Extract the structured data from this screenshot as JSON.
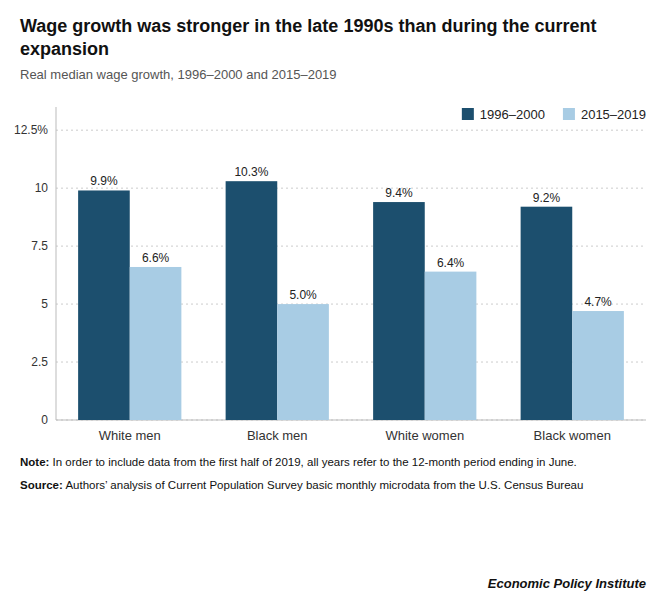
{
  "chart_data": {
    "type": "bar",
    "title": "Wage growth was stronger in the late 1990s than during the current expansion",
    "subtitle": "Real median wage growth, 1996–2000 and 2015–2019",
    "categories": [
      "White men",
      "Black men",
      "White women",
      "Black women"
    ],
    "series": [
      {
        "name": "1996–2000",
        "color": "#1c4f6e",
        "values": [
          9.9,
          10.3,
          9.4,
          9.2
        ],
        "value_labels": [
          "9.9%",
          "10.3%",
          "9.4%",
          "9.2%"
        ]
      },
      {
        "name": "2015–2019",
        "color": "#a8cce4",
        "values": [
          6.6,
          5.0,
          6.4,
          4.7
        ],
        "value_labels": [
          "6.6%",
          "5.0%",
          "6.4%",
          "4.7%"
        ]
      }
    ],
    "ylim": [
      0,
      13.5
    ],
    "yticks": [
      0,
      2.5,
      5,
      7.5,
      10,
      {
        "value": 12.5,
        "label": "12.5%"
      }
    ],
    "grid": true,
    "legend": "upper right",
    "data_labels": true,
    "annotations": [
      "Note: In order to include data from the first half of 2019, all years refer to the 12-month period ending in June.",
      "Source: Authors’ analysis of Current Population Survey basic monthly microdata from the U.S. Census Bureau",
      "Economic Policy Institute"
    ]
  }
}
